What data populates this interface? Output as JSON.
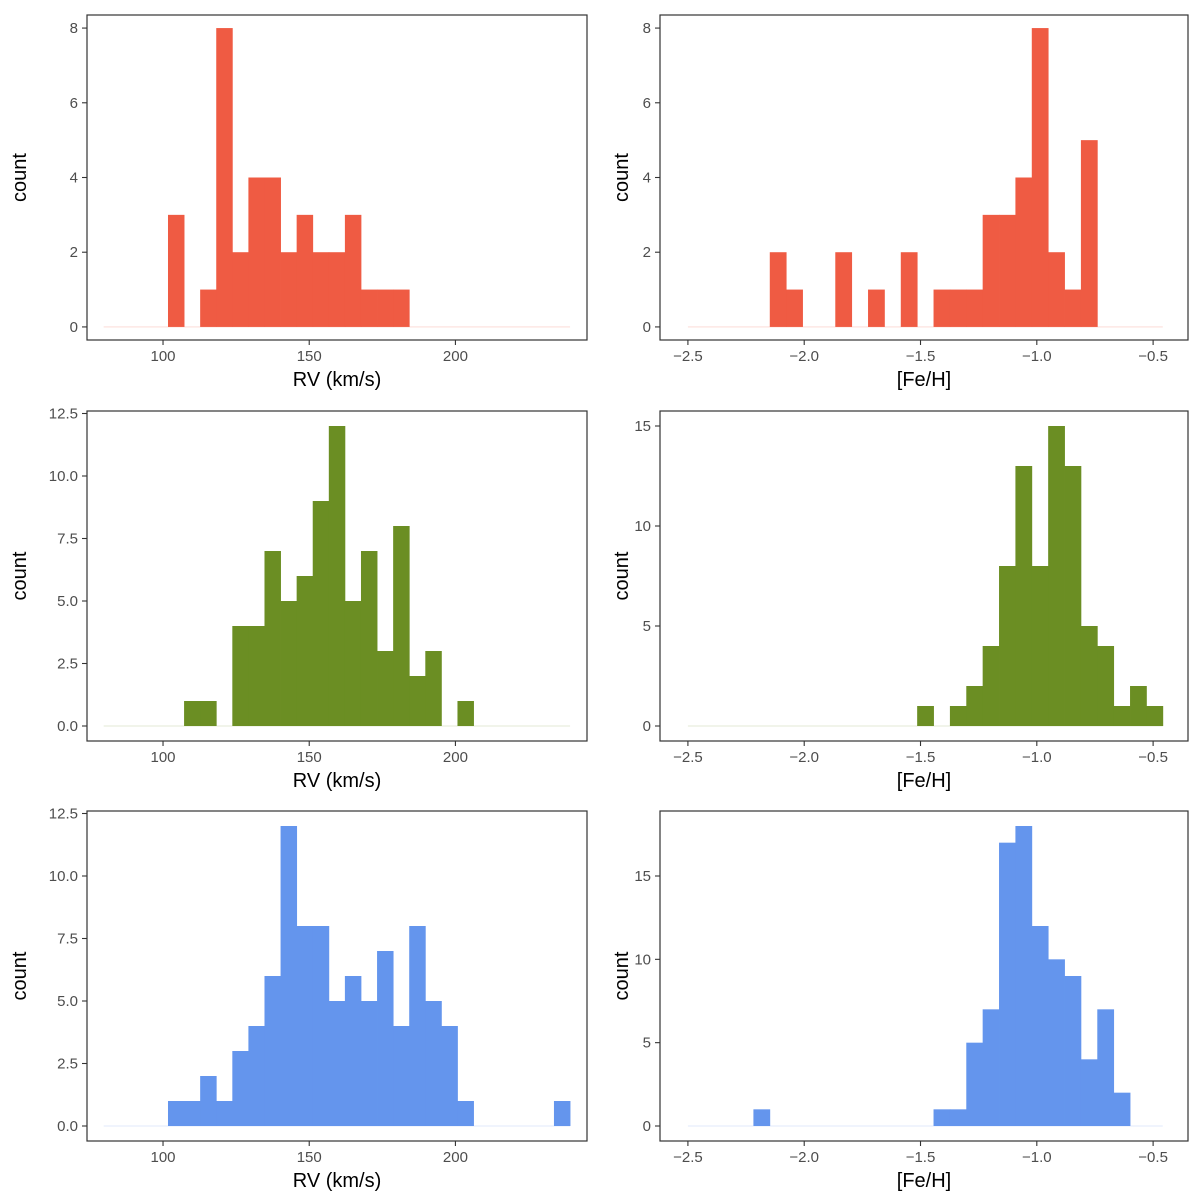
{
  "colors": {
    "top": "#EF5B43",
    "middle": "#6B8E23",
    "bottom": "#6495ED"
  },
  "chart_data": [
    {
      "name": "rv-top",
      "type": "histogram",
      "color_key": "top",
      "xlabel": "RV (km/s)",
      "ylabel": "count",
      "xlim": [
        74,
        245
      ],
      "ylim": [
        -0.35,
        8.35
      ],
      "xticks": [
        100,
        150,
        200
      ],
      "xtick_labels": [
        "100",
        "150",
        "200"
      ],
      "yticks": [
        0,
        2,
        4,
        6,
        8
      ],
      "ytick_labels": [
        "0",
        "2",
        "4",
        "6",
        "8"
      ],
      "bin_start": 79.7,
      "bin_width": 5.5,
      "counts": [
        0,
        0,
        0,
        0,
        3,
        0,
        1,
        8,
        2,
        4,
        4,
        2,
        3,
        2,
        2,
        3,
        1,
        1,
        1,
        0,
        0,
        0,
        0,
        0,
        0,
        0,
        0,
        0,
        0
      ]
    },
    {
      "name": "feh-top",
      "type": "histogram",
      "color_key": "top",
      "xlabel": "[Fe/H]",
      "ylabel": "count",
      "xlim": [
        -2.62,
        -0.35
      ],
      "ylim": [
        -0.35,
        8.35
      ],
      "xticks": [
        -2.5,
        -2.0,
        -1.5,
        -1.0,
        -0.5
      ],
      "xtick_labels": [
        "−2.5",
        "−2.0",
        "−1.5",
        "−1.0",
        "−0.5"
      ],
      "yticks": [
        0,
        2,
        4,
        6,
        8
      ],
      "ytick_labels": [
        "0",
        "2",
        "4",
        "6",
        "8"
      ],
      "bin_start": -2.5,
      "bin_width": 0.0704,
      "counts": [
        0,
        0,
        0,
        0,
        0,
        2,
        1,
        0,
        0,
        2,
        0,
        1,
        0,
        2,
        0,
        1,
        1,
        1,
        3,
        3,
        4,
        8,
        2,
        1,
        5,
        0,
        0,
        0,
        0
      ]
    },
    {
      "name": "rv-middle",
      "type": "histogram",
      "color_key": "middle",
      "xlabel": "RV (km/s)",
      "ylabel": "count",
      "xlim": [
        74,
        245
      ],
      "ylim": [
        -0.6,
        12.6
      ],
      "xticks": [
        100,
        150,
        200
      ],
      "xtick_labels": [
        "100",
        "150",
        "200"
      ],
      "yticks": [
        0,
        2.5,
        5,
        7.5,
        10,
        12.5
      ],
      "ytick_labels": [
        "0.0",
        "2.5",
        "5.0",
        "7.5",
        "10.0",
        "12.5"
      ],
      "bin_start": 79.7,
      "bin_width": 5.5,
      "counts": [
        0,
        0,
        0,
        0,
        0,
        1,
        1,
        0,
        4,
        4,
        7,
        5,
        6,
        9,
        12,
        5,
        7,
        3,
        8,
        2,
        3,
        0,
        1,
        0,
        0,
        0,
        0,
        0,
        0
      ]
    },
    {
      "name": "feh-middle",
      "type": "histogram",
      "color_key": "middle",
      "xlabel": "[Fe/H]",
      "ylabel": "count",
      "xlim": [
        -2.62,
        -0.35
      ],
      "ylim": [
        -0.75,
        15.75
      ],
      "xticks": [
        -2.5,
        -2.0,
        -1.5,
        -1.0,
        -0.5
      ],
      "xtick_labels": [
        "−2.5",
        "−2.0",
        "−1.5",
        "−1.0",
        "−0.5"
      ],
      "yticks": [
        0,
        5,
        10,
        15
      ],
      "ytick_labels": [
        "0",
        "5",
        "10",
        "15"
      ],
      "bin_start": -2.5,
      "bin_width": 0.0704,
      "counts": [
        0,
        0,
        0,
        0,
        0,
        0,
        0,
        0,
        0,
        0,
        0,
        0,
        0,
        0,
        1,
        0,
        1,
        2,
        4,
        8,
        13,
        8,
        15,
        13,
        5,
        4,
        1,
        2,
        1
      ]
    },
    {
      "name": "rv-bottom",
      "type": "histogram",
      "color_key": "bottom",
      "xlabel": "RV (km/s)",
      "ylabel": "count",
      "xlim": [
        74,
        245
      ],
      "ylim": [
        -0.6,
        12.6
      ],
      "xticks": [
        100,
        150,
        200
      ],
      "xtick_labels": [
        "100",
        "150",
        "200"
      ],
      "yticks": [
        0,
        2.5,
        5,
        7.5,
        10,
        12.5
      ],
      "ytick_labels": [
        "0.0",
        "2.5",
        "5.0",
        "7.5",
        "10.0",
        "12.5"
      ],
      "bin_start": 79.7,
      "bin_width": 5.5,
      "counts": [
        0,
        0,
        0,
        0,
        1,
        1,
        2,
        1,
        3,
        4,
        6,
        12,
        8,
        8,
        5,
        6,
        5,
        7,
        4,
        8,
        5,
        4,
        1,
        0,
        0,
        0,
        0,
        0,
        1
      ]
    },
    {
      "name": "feh-bottom",
      "type": "histogram",
      "color_key": "bottom",
      "xlabel": "[Fe/H]",
      "ylabel": "count",
      "xlim": [
        -2.62,
        -0.35
      ],
      "ylim": [
        -0.9,
        18.9
      ],
      "xticks": [
        -2.5,
        -2.0,
        -1.5,
        -1.0,
        -0.5
      ],
      "xtick_labels": [
        "−2.5",
        "−2.0",
        "−1.5",
        "−1.0",
        "−0.5"
      ],
      "yticks": [
        0,
        5,
        10,
        15
      ],
      "ytick_labels": [
        "0",
        "5",
        "10",
        "15"
      ],
      "bin_start": -2.5,
      "bin_width": 0.0704,
      "counts": [
        0,
        0,
        0,
        0,
        1,
        0,
        0,
        0,
        0,
        0,
        0,
        0,
        0,
        0,
        0,
        1,
        1,
        5,
        7,
        17,
        18,
        12,
        10,
        9,
        4,
        7,
        2,
        0,
        0
      ]
    }
  ]
}
